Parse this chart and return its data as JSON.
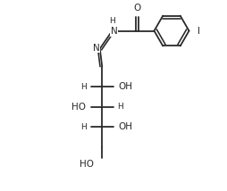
{
  "background_color": "#ffffff",
  "line_color": "#2a2a2a",
  "line_width": 1.3,
  "font_size": 7.5,
  "figure_size": [
    2.54,
    2.14
  ],
  "dpi": 100,
  "xlim": [
    0,
    10
  ],
  "ylim": [
    0,
    8.5
  ]
}
